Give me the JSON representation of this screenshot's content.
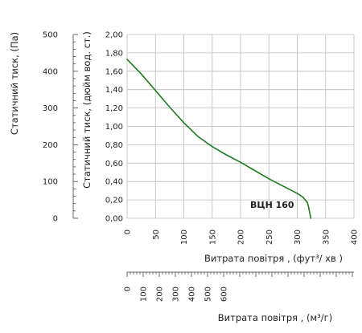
{
  "chart_data": {
    "type": "line",
    "xlabel": "Витрата повітря , (фут³/ хв )",
    "xlabel_bottom": "Витрата повітря , (м³/г)",
    "ylabel_left": "Статичний тиск, (Па)",
    "ylabel_right": "Статичний тиск, (дюйм вод. ст.)",
    "xlim": [
      0,
      400
    ],
    "ylim": [
      0,
      2.0
    ],
    "ylim_left": [
      0,
      500
    ],
    "x_ticks": [
      "0",
      "50",
      "100",
      "150",
      "200",
      "250",
      "300",
      "350",
      "400"
    ],
    "y_ticks_inch": [
      "0,00",
      "0,20",
      "0,40",
      "0,60",
      "0,80",
      "1,00",
      "1,20",
      "1,40",
      "1,60",
      "1,80",
      "2,00"
    ],
    "y_ticks_pa": [
      "0",
      "100",
      "200",
      "300",
      "400",
      "500"
    ],
    "y_ticks_pa_values": [
      0,
      100,
      200,
      300,
      400,
      500
    ],
    "x_ticks_m3h": [
      "0",
      "100",
      "200",
      "300",
      "400",
      "500",
      "600"
    ],
    "x_ticks_m3h_values": [
      0,
      100,
      200,
      300,
      400,
      500,
      600
    ],
    "grid": true,
    "series": [
      {
        "name": "ВЦН 160",
        "color": "#1f7a1f",
        "x": [
          0,
          25,
          50,
          75,
          100,
          125,
          150,
          175,
          200,
          225,
          250,
          275,
          300,
          310,
          318,
          320,
          322,
          324
        ],
        "y": [
          1.73,
          1.57,
          1.39,
          1.21,
          1.04,
          0.89,
          0.78,
          0.69,
          0.61,
          0.52,
          0.43,
          0.35,
          0.27,
          0.23,
          0.17,
          0.12,
          0.06,
          0.0
        ]
      }
    ]
  }
}
